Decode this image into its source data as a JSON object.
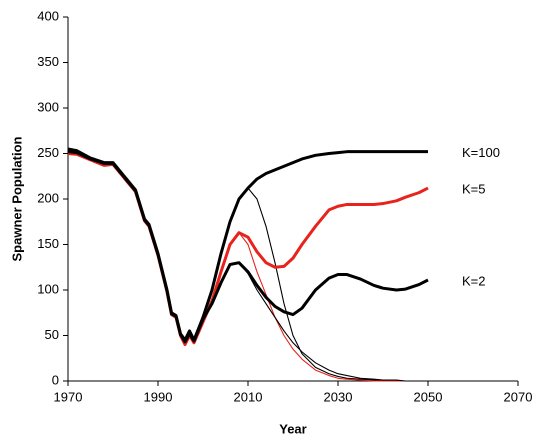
{
  "chart_data": {
    "type": "line",
    "xlabel": "Year",
    "ylabel": "Spawner Population",
    "x": [
      1970,
      1972,
      1975,
      1978,
      1980,
      1982,
      1985,
      1987,
      1988,
      1990,
      1992,
      1993,
      1994,
      1995,
      1996,
      1997,
      1998,
      2000,
      2002,
      2004,
      2006,
      2008,
      2010,
      2012,
      2014,
      2016,
      2018,
      2020,
      2022,
      2025,
      2028,
      2030,
      2032,
      2035,
      2038,
      2040,
      2043,
      2045,
      2048,
      2050
    ],
    "series": [
      {
        "color": "#000000",
        "values": [
          null,
          null,
          null,
          null,
          null,
          null,
          null,
          null,
          null,
          null,
          null,
          null,
          null,
          null,
          null,
          null,
          null,
          null,
          null,
          null,
          null,
          null,
          212,
          200,
          170,
          130,
          85,
          50,
          30,
          15,
          8,
          5,
          3,
          2,
          1,
          1,
          0,
          0,
          0,
          0
        ]
      },
      {
        "color": "#e8231d",
        "values": [
          null,
          null,
          null,
          null,
          null,
          null,
          null,
          null,
          null,
          null,
          null,
          null,
          null,
          null,
          null,
          null,
          null,
          null,
          null,
          null,
          null,
          163,
          150,
          120,
          95,
          70,
          50,
          35,
          24,
          12,
          6,
          3,
          2,
          1,
          0,
          0,
          0,
          0,
          0,
          0
        ]
      },
      {
        "color": "#000000",
        "values": [
          null,
          null,
          null,
          null,
          null,
          null,
          null,
          null,
          null,
          null,
          null,
          null,
          null,
          null,
          null,
          null,
          null,
          null,
          null,
          null,
          null,
          130,
          118,
          100,
          85,
          70,
          55,
          42,
          32,
          20,
          12,
          8,
          6,
          3,
          2,
          1,
          1,
          0,
          0,
          0
        ]
      },
      {
        "name": "K=100",
        "color": "#000000",
        "values": [
          255,
          253,
          245,
          240,
          240,
          228,
          210,
          178,
          172,
          140,
          100,
          75,
          72,
          52,
          45,
          55,
          45,
          70,
          100,
          140,
          175,
          200,
          212,
          222,
          228,
          232,
          236,
          240,
          244,
          248,
          250,
          251,
          252,
          252,
          252,
          252,
          252,
          252,
          252,
          252
        ]
      },
      {
        "name": "K=5",
        "color": "#e8231d",
        "values": [
          250,
          249,
          243,
          237,
          238,
          226,
          208,
          176,
          170,
          138,
          98,
          73,
          70,
          50,
          40,
          50,
          42,
          65,
          88,
          120,
          150,
          163,
          158,
          142,
          130,
          125,
          126,
          135,
          150,
          170,
          188,
          192,
          194,
          194,
          194,
          195,
          198,
          202,
          207,
          212
        ]
      },
      {
        "name": "K=2",
        "color": "#000000",
        "values": [
          252,
          251,
          244,
          239,
          239,
          227,
          209,
          177,
          171,
          139,
          99,
          74,
          71,
          51,
          43,
          52,
          44,
          68,
          85,
          108,
          128,
          130,
          120,
          105,
          92,
          82,
          76,
          73,
          80,
          100,
          113,
          117,
          117,
          112,
          105,
          102,
          100,
          101,
          106,
          111
        ]
      }
    ],
    "xlim": [
      1970,
      2070
    ],
    "xticks": [
      1970,
      1990,
      2010,
      2030,
      2050,
      2070
    ],
    "ylim": [
      0,
      400
    ],
    "yticks": [
      0,
      50,
      100,
      150,
      200,
      250,
      300,
      350,
      400
    ],
    "grid": false
  }
}
